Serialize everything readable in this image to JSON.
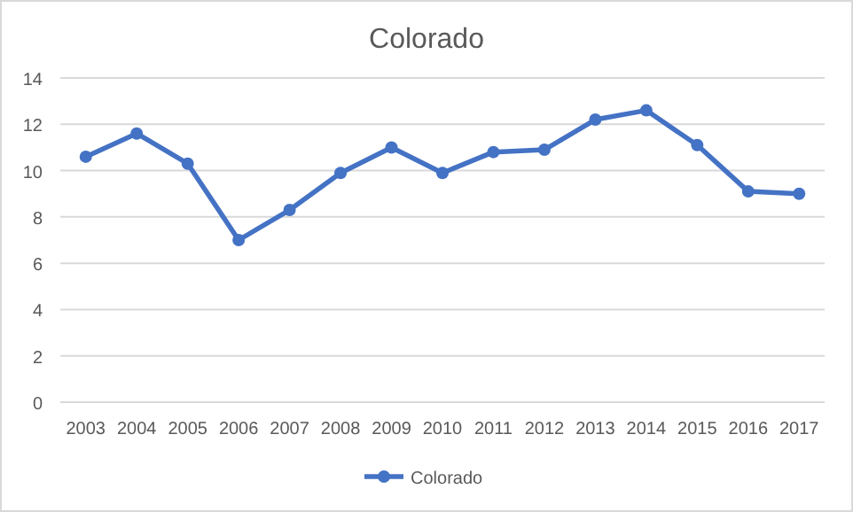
{
  "chart_data": {
    "type": "line",
    "title": "Colorado",
    "categories": [
      "2003",
      "2004",
      "2005",
      "2006",
      "2007",
      "2008",
      "2009",
      "2010",
      "2011",
      "2012",
      "2013",
      "2014",
      "2015",
      "2016",
      "2017"
    ],
    "series": [
      {
        "name": "Colorado",
        "color": "#4472c4",
        "values": [
          10.6,
          11.6,
          10.3,
          7.0,
          8.3,
          9.9,
          11.0,
          9.9,
          10.8,
          10.9,
          12.2,
          12.6,
          11.1,
          9.1,
          9.0
        ]
      }
    ],
    "ylim": [
      0,
      14
    ],
    "yticks": [
      0,
      2,
      4,
      6,
      8,
      10,
      12,
      14
    ],
    "grid": "y",
    "legend": "bottom",
    "marker": "circle",
    "line_style": "solid"
  }
}
